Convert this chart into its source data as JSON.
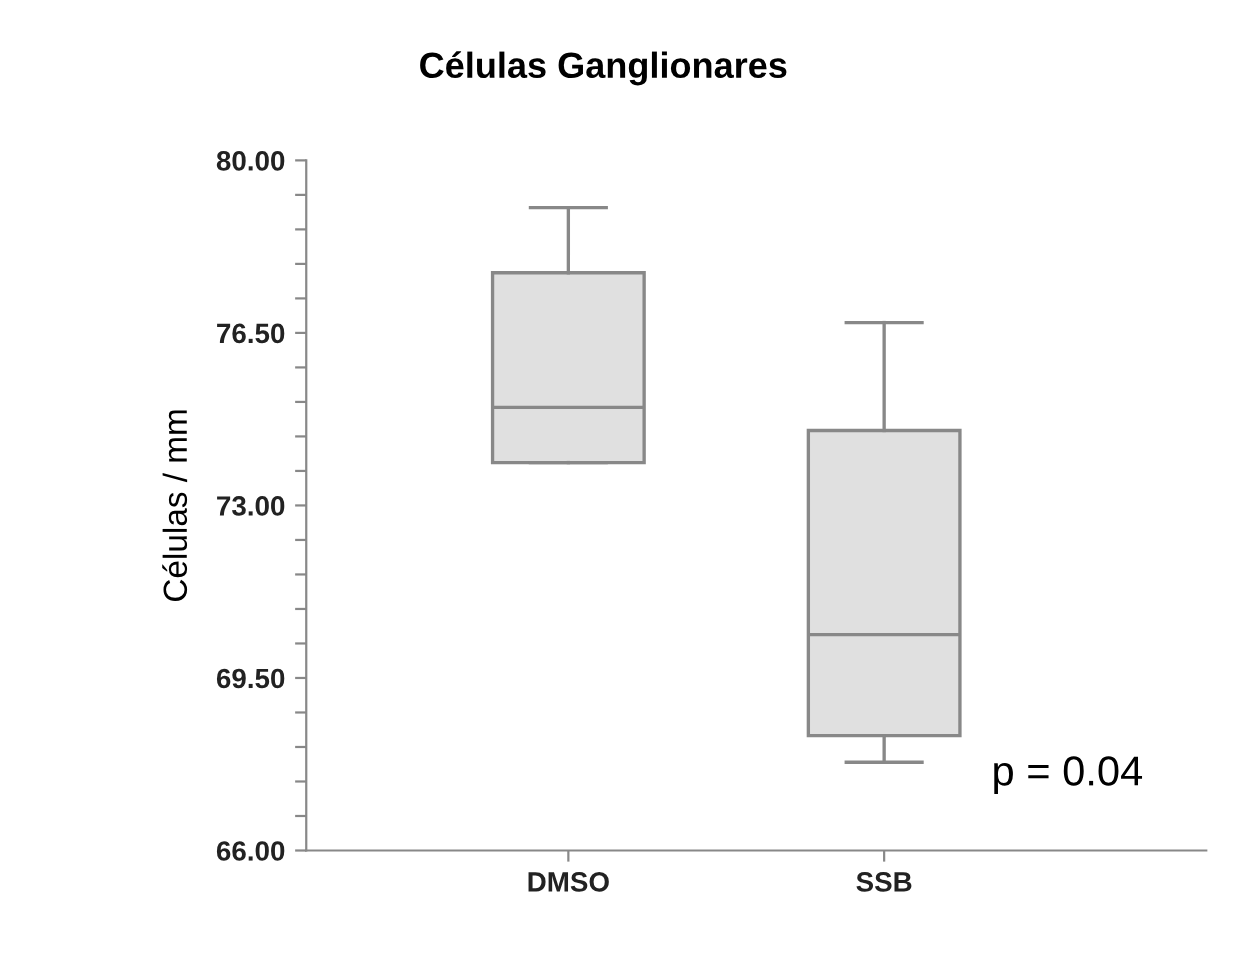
{
  "chart_data": {
    "type": "box",
    "title": "Células Ganglionares",
    "ylabel": "Células / mm",
    "categories": [
      "DMSO",
      "SSB"
    ],
    "boxes": [
      {
        "low": 73.87,
        "q1": 73.87,
        "median": 74.99,
        "q3": 77.72,
        "high": 79.04
      },
      {
        "low": 67.79,
        "q1": 68.33,
        "median": 70.38,
        "q3": 74.52,
        "high": 76.71
      }
    ],
    "color": "#e0e0e0",
    "ylim": [
      66,
      80
    ],
    "yticks": [
      {
        "value": 66,
        "label": "66.00"
      },
      {
        "value": 66.7,
        "label": null
      },
      {
        "value": 67.4,
        "label": null
      },
      {
        "value": 68.1,
        "label": null
      },
      {
        "value": 68.8,
        "label": null
      },
      {
        "value": 69.5,
        "label": "69.50"
      },
      {
        "value": 70.2,
        "label": null
      },
      {
        "value": 70.9,
        "label": null
      },
      {
        "value": 71.6,
        "label": null
      },
      {
        "value": 72.3,
        "label": null
      },
      {
        "value": 73,
        "label": "73.00"
      },
      {
        "value": 73.7,
        "label": null
      },
      {
        "value": 74.4,
        "label": null
      },
      {
        "value": 75.1,
        "label": null
      },
      {
        "value": 75.8,
        "label": null
      },
      {
        "value": 76.5,
        "label": "76.50"
      },
      {
        "value": 77.2,
        "label": null
      },
      {
        "value": 77.9,
        "label": null
      },
      {
        "value": 78.6,
        "label": null
      },
      {
        "value": 79.3,
        "label": null
      },
      {
        "value": 80,
        "label": "80.00"
      }
    ],
    "annotations": [
      "p = 0.04"
    ],
    "grid": false,
    "legend": false
  }
}
